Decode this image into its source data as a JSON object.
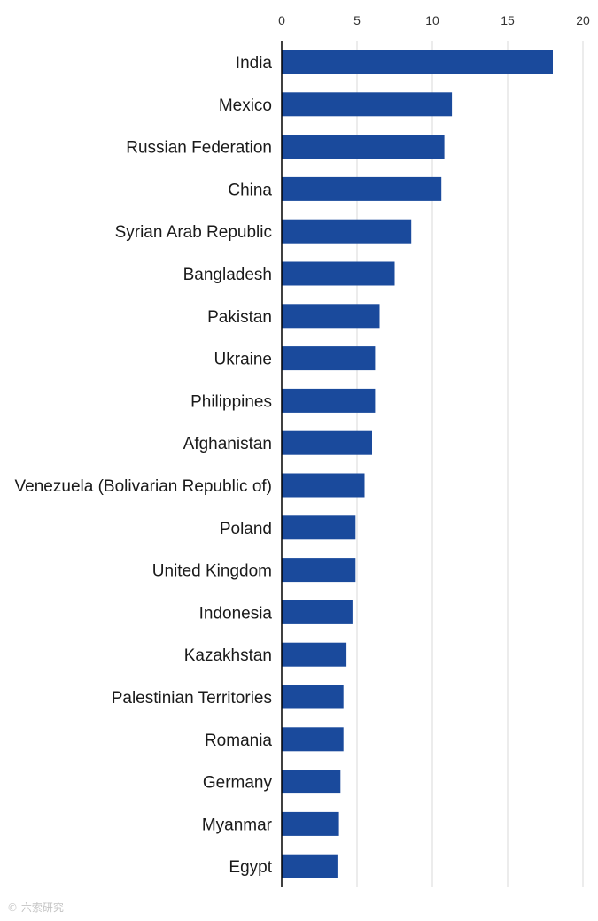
{
  "chart_data": {
    "type": "bar",
    "orientation": "horizontal",
    "categories": [
      "India",
      "Mexico",
      "Russian Federation",
      "China",
      "Syrian Arab Republic",
      "Bangladesh",
      "Pakistan",
      "Ukraine",
      "Philippines",
      "Afghanistan",
      "Venezuela (Bolivarian Republic of)",
      "Poland",
      "United Kingdom",
      "Indonesia",
      "Kazakhstan",
      "Palestinian Territories",
      "Romania",
      "Germany",
      "Myanmar",
      "Egypt"
    ],
    "values": [
      18.0,
      11.3,
      10.8,
      10.6,
      8.6,
      7.5,
      6.5,
      6.2,
      6.2,
      6.0,
      5.5,
      4.9,
      4.9,
      4.7,
      4.3,
      4.1,
      4.1,
      3.9,
      3.8,
      3.7
    ],
    "xlim": [
      0,
      20
    ],
    "xticks": [
      0,
      5,
      10,
      15,
      20
    ],
    "tick_position": "top",
    "grid": true,
    "title": "",
    "xlabel": "",
    "ylabel": "",
    "colors": {
      "bar": "#1a4a9c",
      "grid": "#d9d9d9",
      "axis": "#000000"
    }
  },
  "watermark": "© 六索研究"
}
